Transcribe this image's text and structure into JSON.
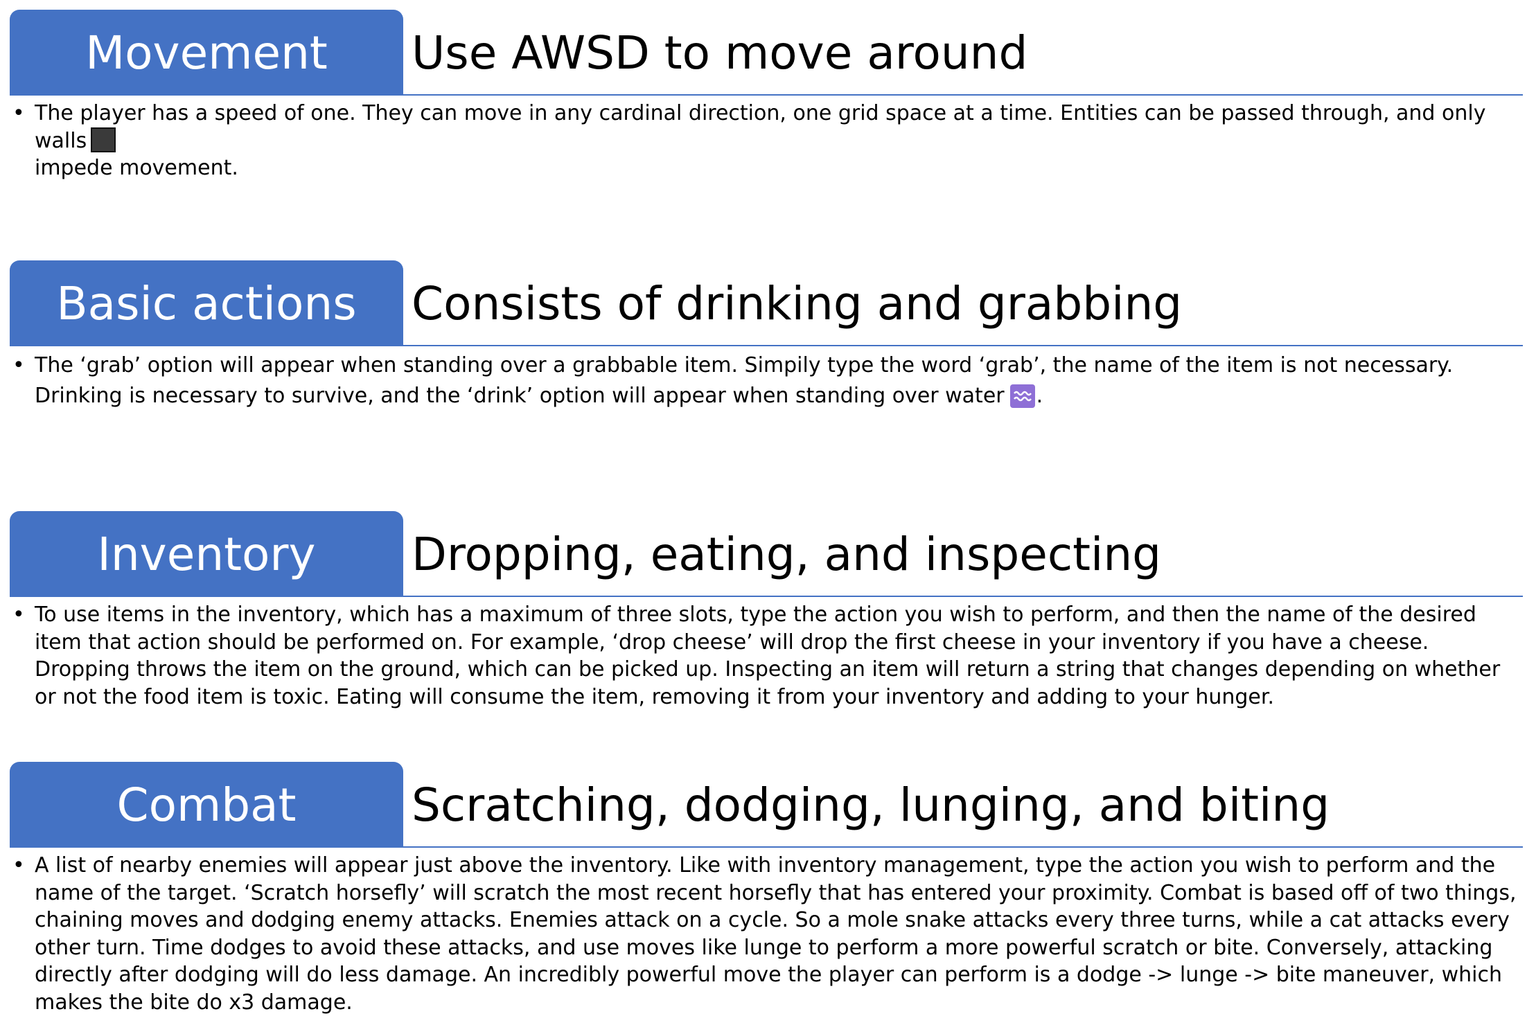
{
  "sections": [
    {
      "tab_label": "Movement",
      "heading": "Use AWSD to move around",
      "bullet": "•",
      "text": "The player has a speed of one. They can move in any cardinal direction, one grid space at a time. Entities can be passed through, and only walls",
      "text_after_icon": "impede movement.",
      "icon": "wall-icon"
    },
    {
      "tab_label": "Basic actions",
      "heading": "Consists of drinking and grabbing",
      "bullet": "•",
      "text": "The ‘grab’ option will appear when standing over a grabbable item. Simpily type the word ‘grab’, the name of the item is not necessary. Drinking is necessary to survive, and the ‘drink’ option will appear when standing over water",
      "text_after_icon": ".",
      "icon": "water-icon"
    },
    {
      "tab_label": "Inventory",
      "heading": "Dropping, eating, and inspecting",
      "bullet": "•",
      "text": "To use items in the inventory, which has a maximum of three slots, type the action you wish to perform, and then the name of the desired item that action should be performed on. For example, ‘drop cheese’ will drop the first cheese in your inventory if you have a cheese. Dropping throws the item on the ground, which can be picked up. Inspecting an item will return a string that changes depending on whether or not the food item is toxic. Eating will consume the item, removing it from your inventory and adding to your hunger."
    },
    {
      "tab_label": "Combat",
      "heading": "Scratching, dodging, lunging, and biting",
      "bullet": "•",
      "text": "A list of nearby enemies will appear just above the inventory. Like with inventory management, type the action you wish to perform and the name of the target. ‘Scratch horsefly’ will scratch the most recent horsefly that has entered your proximity. Combat is based off of two things, chaining moves and dodging enemy attacks. Enemies attack on a cycle. So a mole snake attacks every three turns, while a cat attacks every other turn. Time dodges to avoid these attacks, and use moves like lunge to perform a more powerful scratch or bite. Conversely, attacking directly after dodging will do less damage. An incredibly powerful move the player can perform is a dodge -> lunge -> bite maneuver, which makes the bite do x3 damage."
    }
  ],
  "colors": {
    "tab_background": "#4472c4",
    "tab_text": "#ffffff",
    "rule": "#4472c4",
    "wall_icon": "#3a3a3a",
    "water_icon": "#8e6fd6"
  }
}
